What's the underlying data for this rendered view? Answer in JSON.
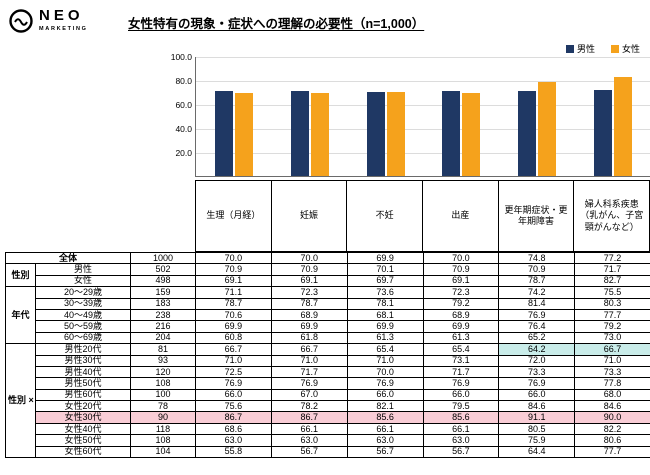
{
  "logo": {
    "brand": "NEO",
    "sub": "MARKETING"
  },
  "title": "女性特有の現象・症状への理解の必要性（n=1,000）",
  "colors": {
    "pink": "#f9cdd6",
    "teal": "#c9ece9",
    "male": "#1f3864",
    "female": "#f5a21c"
  },
  "chart_data": {
    "type": "bar",
    "title": "女性特有の現象・症状への理解の必要性（n=1,000）",
    "categories": [
      "生理（月経）",
      "妊娠",
      "不妊",
      "出産",
      "更年期症状・更年期障害",
      "婦人科系疾患（乳がん、子宮頸がんなど）"
    ],
    "series": [
      {
        "name": "男性",
        "color": "#1f3864",
        "values": [
          70.9,
          70.9,
          70.1,
          70.9,
          70.9,
          71.7
        ]
      },
      {
        "name": "女性",
        "color": "#f5a21c",
        "values": [
          69.1,
          69.1,
          69.7,
          69.1,
          78.7,
          82.7
        ]
      }
    ],
    "ylim": [
      0,
      100
    ],
    "yticks": [
      "100.0",
      "80.0",
      "60.0",
      "40.0",
      "20.0"
    ],
    "xlabel": "",
    "ylabel": "",
    "grid": true,
    "legend_position": "top-right"
  },
  "table": {
    "row_groups": [
      {
        "label": "全体",
        "merge_label": true,
        "rows": [
          {
            "n": "1000",
            "values": [
              "70.0",
              "70.0",
              "69.9",
              "70.0",
              "74.8",
              "77.2"
            ]
          }
        ]
      },
      {
        "label": "性別",
        "rows": [
          {
            "label": "男性",
            "n": "502",
            "values": [
              "70.9",
              "70.9",
              "70.1",
              "70.9",
              "70.9",
              "71.7"
            ]
          },
          {
            "label": "女性",
            "n": "498",
            "values": [
              "69.1",
              "69.1",
              "69.7",
              "69.1",
              "78.7",
              "82.7"
            ]
          }
        ]
      },
      {
        "label": "年代",
        "rows": [
          {
            "label": "20〜29歳",
            "n": "159",
            "values": [
              "71.1",
              "72.3",
              "73.6",
              "72.3",
              "74.2",
              "75.5"
            ]
          },
          {
            "label": "30〜39歳",
            "n": "183",
            "values": [
              "78.7",
              "78.7",
              "78.1",
              "79.2",
              "81.4",
              "80.3"
            ]
          },
          {
            "label": "40〜49歳",
            "n": "238",
            "values": [
              "70.6",
              "68.9",
              "68.1",
              "68.9",
              "76.9",
              "77.7"
            ]
          },
          {
            "label": "50〜59歳",
            "n": "216",
            "values": [
              "69.9",
              "69.9",
              "69.9",
              "69.9",
              "76.4",
              "79.2"
            ]
          },
          {
            "label": "60〜69歳",
            "n": "204",
            "values": [
              "60.8",
              "61.8",
              "61.3",
              "61.3",
              "65.2",
              "73.0"
            ]
          }
        ]
      },
      {
        "label": "性別\n×\n年代",
        "rows": [
          {
            "label": "男性20代",
            "n": "81",
            "values": [
              "66.7",
              "66.7",
              "65.4",
              "65.4",
              "64.2",
              "66.7"
            ],
            "cell_highlights": {
              "4": "teal",
              "5": "teal"
            }
          },
          {
            "label": "男性30代",
            "n": "93",
            "values": [
              "71.0",
              "71.0",
              "71.0",
              "73.1",
              "72.0",
              "71.0"
            ]
          },
          {
            "label": "男性40代",
            "n": "120",
            "values": [
              "72.5",
              "71.7",
              "70.0",
              "71.7",
              "73.3",
              "73.3"
            ]
          },
          {
            "label": "男性50代",
            "n": "108",
            "values": [
              "76.9",
              "76.9",
              "76.9",
              "76.9",
              "76.9",
              "77.8"
            ]
          },
          {
            "label": "男性60代",
            "n": "100",
            "values": [
              "66.0",
              "67.0",
              "66.0",
              "66.0",
              "66.0",
              "68.0"
            ]
          },
          {
            "label": "女性20代",
            "n": "78",
            "values": [
              "75.6",
              "78.2",
              "82.1",
              "79.5",
              "84.6",
              "84.6"
            ]
          },
          {
            "label": "女性30代",
            "n": "90",
            "values": [
              "86.7",
              "86.7",
              "85.6",
              "85.6",
              "91.1",
              "90.0"
            ],
            "row_highlight": "pink"
          },
          {
            "label": "女性40代",
            "n": "118",
            "values": [
              "68.6",
              "66.1",
              "66.1",
              "66.1",
              "80.5",
              "82.2"
            ]
          },
          {
            "label": "女性50代",
            "n": "108",
            "values": [
              "63.0",
              "63.0",
              "63.0",
              "63.0",
              "75.9",
              "80.6"
            ]
          },
          {
            "label": "女性60代",
            "n": "104",
            "values": [
              "55.8",
              "56.7",
              "56.7",
              "56.7",
              "64.4",
              "77.7"
            ]
          }
        ]
      }
    ]
  }
}
